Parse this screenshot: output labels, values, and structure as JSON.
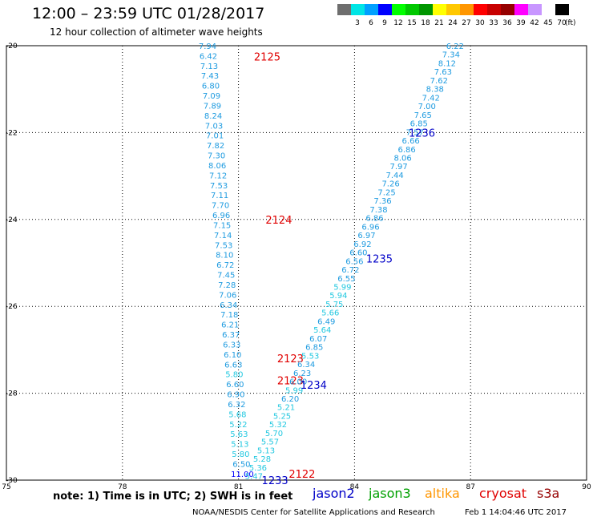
{
  "header": {
    "title": "12:00 – 23:59 UTC 01/28/2017",
    "subtitle": "12 hour collection of altimeter wave heights"
  },
  "legend": {
    "unit": "(ft)",
    "items": [
      {
        "label": "",
        "color": "#6e6e6e"
      },
      {
        "label": "3",
        "color": "#00e5e5"
      },
      {
        "label": "6",
        "color": "#00a0ff"
      },
      {
        "label": "9",
        "color": "#0000ff"
      },
      {
        "label": "12",
        "color": "#00ff00"
      },
      {
        "label": "15",
        "color": "#00c800"
      },
      {
        "label": "18",
        "color": "#009600"
      },
      {
        "label": "21",
        "color": "#ffff00"
      },
      {
        "label": "24",
        "color": "#ffc800"
      },
      {
        "label": "27",
        "color": "#ff9600"
      },
      {
        "label": "30",
        "color": "#ff0000"
      },
      {
        "label": "33",
        "color": "#c80000"
      },
      {
        "label": "36",
        "color": "#960000"
      },
      {
        "label": "39",
        "color": "#ff00ff"
      },
      {
        "label": "42",
        "color": "#c896ff"
      },
      {
        "label": "45",
        "color": "#ffffff"
      },
      {
        "label": "70",
        "color": "#000000"
      }
    ]
  },
  "map": {
    "lon_range": [
      75,
      90
    ],
    "lat_range": [
      -30,
      -20
    ],
    "x_ticks": [
      "75",
      "78",
      "81",
      "84",
      "87",
      "90"
    ],
    "y_ticks": [
      "-20",
      "-22",
      "-24",
      "-26",
      "-28",
      "-30"
    ],
    "value_color": "#1e9be0",
    "value_color_light": "#22c8e0",
    "pass_color_cryosat": "#e00000",
    "pass_color_jason2": "#0000c8",
    "tracks": [
      {
        "start": [
          80.2,
          -20.0
        ],
        "end": [
          81.1,
          -29.85
        ],
        "values": [
          "7.94",
          "6.42",
          "7.13",
          "7.43",
          "6.80",
          "7.09",
          "7.89",
          "8.24",
          "7.03",
          "7.01",
          "7.82",
          "7.30",
          "8.06",
          "7.12",
          "7.53",
          "7.11",
          "7.70",
          "6.96",
          "7.15",
          "7.14",
          "7.53",
          "8.10",
          "6.72",
          "7.45",
          "7.28",
          "7.06",
          "6.34",
          "7.18",
          "6.21",
          "6.37",
          "6.33",
          "6.10",
          "6.63",
          "5.80",
          "6.60",
          "6.90",
          "6.32",
          "5.68",
          "5.22",
          "5.63",
          "5.13",
          "5.80",
          "6.50",
          "11.00"
        ],
        "passes": [
          {
            "label": "2125",
            "lon": 81.4,
            "lat": -20.25,
            "sat": "cryosat"
          },
          {
            "label": "2124",
            "lon": 81.7,
            "lat": -24.0,
            "sat": "cryosat"
          },
          {
            "label": "2123",
            "lon": 82.0,
            "lat": -27.2,
            "sat": "cryosat"
          },
          {
            "label": "2123",
            "lon": 82.0,
            "lat": -27.7,
            "sat": "cryosat"
          },
          {
            "label": "2122",
            "lon": 82.3,
            "lat": -29.85,
            "sat": "cryosat"
          }
        ]
      },
      {
        "start": [
          86.6,
          -20.0
        ],
        "end": [
          81.4,
          -29.9
        ],
        "values": [
          "6.22",
          "7.34",
          "8.12",
          "7.63",
          "7.62",
          "8.38",
          "7.42",
          "7.00",
          "7.65",
          "6.85",
          "7.57",
          "6.66",
          "6.86",
          "8.06",
          "7.97",
          "7.44",
          "7.26",
          "7.25",
          "7.36",
          "7.38",
          "6.86",
          "6.96",
          "6.97",
          "6.92",
          "6.60",
          "6.56",
          "6.72",
          "6.55",
          "5.99",
          "5.94",
          "5.75",
          "5.66",
          "6.49",
          "5.64",
          "6.07",
          "6.85",
          "5.53",
          "6.34",
          "6.23",
          "6.00",
          "5.99",
          "6.20",
          "5.21",
          "5.25",
          "5.32",
          "5.70",
          "5.57",
          "5.13",
          "5.28",
          "5.36",
          "5.47"
        ],
        "passes": [
          {
            "label": "1236",
            "lon": 85.4,
            "lat": -22.0,
            "sat": "jason2"
          },
          {
            "label": "1235",
            "lon": 84.3,
            "lat": -24.9,
            "sat": "jason2"
          },
          {
            "label": "1234",
            "lon": 82.6,
            "lat": -27.8,
            "sat": "jason2"
          },
          {
            "label": "1233",
            "lon": 81.6,
            "lat": -30.0,
            "sat": "jason2"
          }
        ]
      }
    ]
  },
  "footer": {
    "note": "note: 1) Time is in UTC; 2) SWH is in feet",
    "satellites": [
      {
        "name": "jason2",
        "color": "#0000c8"
      },
      {
        "name": "jason3",
        "color": "#00a000"
      },
      {
        "name": "altika",
        "color": "#ff9600"
      },
      {
        "name": "cryosat",
        "color": "#e00000"
      },
      {
        "name": "s3a",
        "color": "#960000"
      }
    ],
    "credit": "NOAA/NESDIS Center for Satellite Applications and Research",
    "timestamp": "Feb  1 14:04:46 UTC 2017"
  }
}
